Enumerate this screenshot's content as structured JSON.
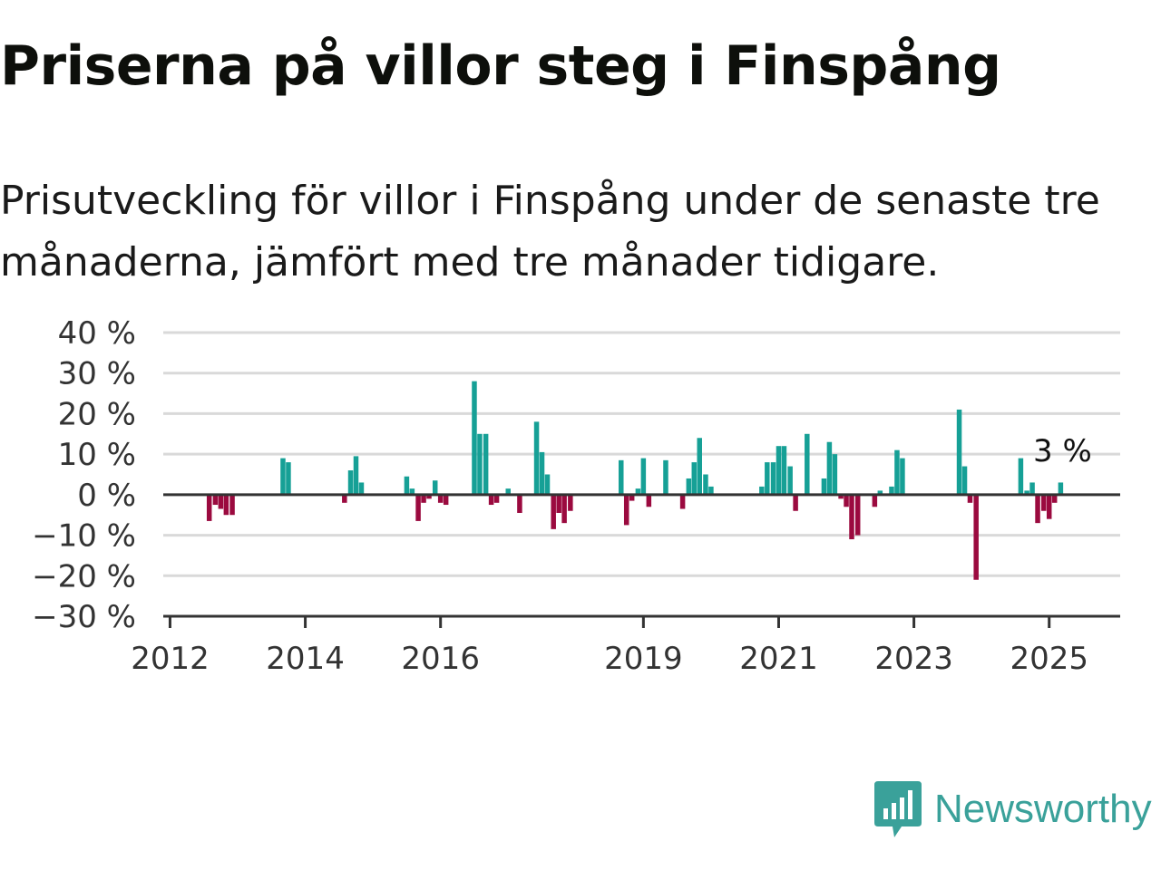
{
  "title": "Priserna på villor steg i Finspång",
  "subtitle": "Prisutveckling för villor i Finspång under de senaste tre månaderna, jämfört med tre månader tidigare.",
  "brand": {
    "name": "Newsworthy",
    "icon": "newsworthy-logo-icon",
    "color": "#3aa19a"
  },
  "colors": {
    "positive": "#16a096",
    "negative": "#9b0a3f",
    "grid": "#d9d9d9",
    "axis": "#333333"
  },
  "chart_data": {
    "type": "bar",
    "ylim": [
      -30,
      40
    ],
    "yticks": [
      40,
      30,
      20,
      10,
      0,
      -10,
      -20,
      -30
    ],
    "ytick_labels": [
      "40 %",
      "30 %",
      "20 %",
      "10 %",
      "0 %",
      "−10 %",
      "−20 %",
      "−30 %"
    ],
    "xlim": [
      2011.9,
      2026.05
    ],
    "xticks": [
      2012,
      2014,
      2016,
      2019,
      2021,
      2023,
      2025
    ],
    "xtick_labels": [
      "2012",
      "2014",
      "2016",
      "2019",
      "2021",
      "2023",
      "2025"
    ],
    "grid": true,
    "unit": "%",
    "last_value_label": "3 %",
    "x": [
      2012.58,
      2012.67,
      2012.75,
      2012.83,
      2012.92,
      2013.0,
      2013.67,
      2013.75,
      2014.58,
      2014.67,
      2014.75,
      2014.83,
      2015.5,
      2015.58,
      2015.67,
      2015.75,
      2015.83,
      2015.92,
      2016.0,
      2016.08,
      2016.5,
      2016.58,
      2016.67,
      2016.75,
      2016.83,
      2017.0,
      2017.17,
      2017.42,
      2017.5,
      2017.58,
      2017.67,
      2017.75,
      2017.83,
      2017.92,
      2018.67,
      2018.75,
      2018.83,
      2018.92,
      2019.0,
      2019.08,
      2019.33,
      2019.58,
      2019.67,
      2019.75,
      2019.83,
      2019.92,
      2020.0,
      2020.75,
      2020.83,
      2020.92,
      2021.0,
      2021.08,
      2021.17,
      2021.25,
      2021.42,
      2021.67,
      2021.75,
      2021.83,
      2021.92,
      2022.0,
      2022.08,
      2022.17,
      2022.42,
      2022.5,
      2022.67,
      2022.75,
      2022.83,
      2023.67,
      2023.75,
      2023.83,
      2023.92,
      2024.58,
      2024.67,
      2024.75,
      2024.83,
      2024.92,
      2025.0,
      2025.08,
      2025.17
    ],
    "values": [
      -6.5,
      -2.5,
      -3.5,
      -5,
      -5,
      0,
      9,
      8,
      -2,
      6,
      9.5,
      3,
      4.5,
      1.5,
      -6.5,
      -2,
      -1,
      3.5,
      -2,
      -2.5,
      28,
      15,
      15,
      -2.5,
      -2,
      1.5,
      -4.5,
      18,
      10.5,
      5,
      -8.5,
      -4.5,
      -7,
      -4,
      8.5,
      -7.5,
      -1.5,
      1.5,
      9,
      -3,
      8.5,
      -3.5,
      4,
      8,
      14,
      5,
      2,
      2,
      8,
      8,
      12,
      12,
      7,
      -4,
      15,
      4,
      13,
      10,
      -1,
      -3,
      -11,
      -10,
      -3,
      1,
      2,
      11,
      9,
      21,
      7,
      -2,
      -21,
      9,
      1,
      3,
      -7,
      -4,
      -6,
      -2,
      3
    ]
  }
}
